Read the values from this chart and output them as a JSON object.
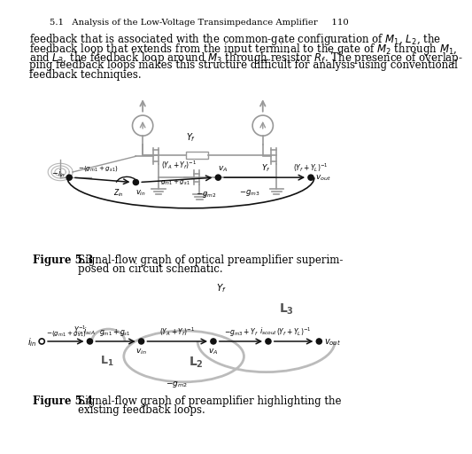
{
  "title_header": "5.1   Analysis of the Low-Voltage Transimpedance Amplifier     110",
  "body_text": [
    "feedback that is associated with the common-gate configuration of $M_1$, $L_2$, the",
    "feedback loop that extends from the input terminal to the gate of $M_2$ through $M_1$,",
    "and $L_3$, the feedback loop around $M_3$ through resistor $R_f$. The presence of overlap-",
    "ping feedback loops makes this structure difficult for analysis using conventional",
    "feedback techniques."
  ],
  "fig3_caption_bold": "Figure 5.3",
  "fig3_caption_line1": "Signal-flow graph of optical preamplifier superim-",
  "fig3_caption_line2": "posed on circuit schematic.",
  "fig4_caption_bold": "Figure 5.4",
  "fig4_caption_line1": "Signal-flow graph of preamplifier highlighting the",
  "fig4_caption_line2": "existing feedback loops.",
  "bg_color": "#ffffff",
  "text_color": "#000000",
  "gc": "#999999",
  "sfg_color": "#111111",
  "loop_color": "#bbbbbb"
}
